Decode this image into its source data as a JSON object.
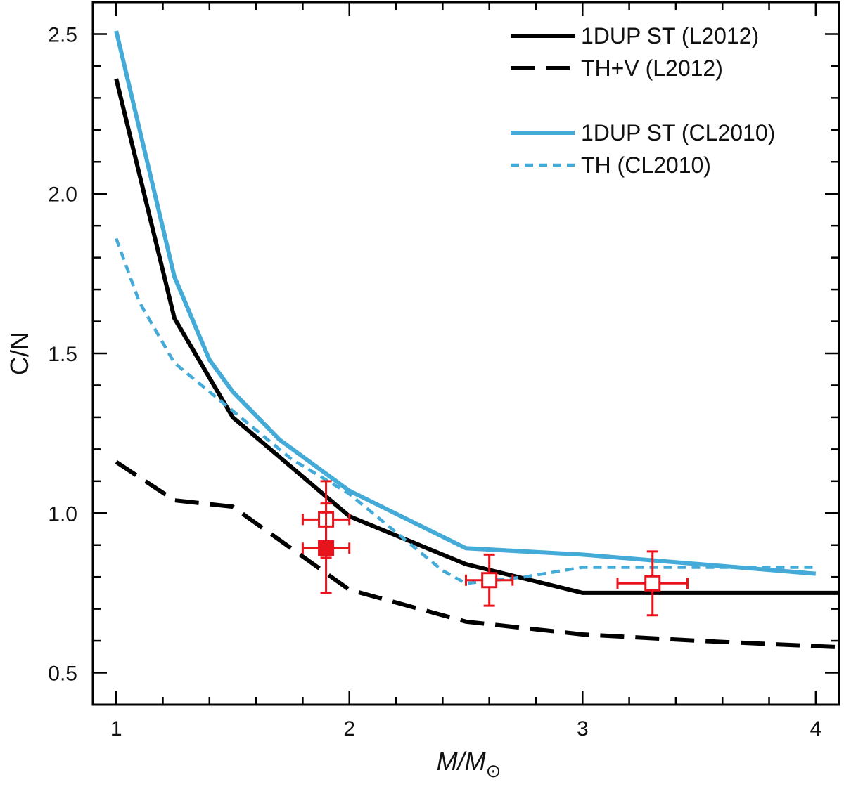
{
  "chart_data": {
    "type": "line",
    "title": "",
    "xlabel": "M/M",
    "xlabel_subscript": "⊙",
    "ylabel": "C/N",
    "xlim": [
      0.9,
      4.1
    ],
    "ylim": [
      0.4,
      2.6
    ],
    "x_ticks": [
      1,
      2,
      3,
      4
    ],
    "x_tick_labels": [
      "1",
      "2",
      "3",
      "4"
    ],
    "x_minor_ticks": [
      1.2,
      1.4,
      1.6,
      1.8,
      2.2,
      2.4,
      2.6,
      2.8,
      3.2,
      3.4,
      3.6,
      3.8
    ],
    "y_ticks": [
      0.5,
      1.0,
      1.5,
      2.0,
      2.5
    ],
    "y_tick_labels": [
      "0.5",
      "1.0",
      "1.5",
      "2.0",
      "2.5"
    ],
    "y_minor_ticks": [
      0.6,
      0.7,
      0.8,
      0.9,
      1.1,
      1.2,
      1.3,
      1.4,
      1.6,
      1.7,
      1.8,
      1.9,
      2.1,
      2.2,
      2.3,
      2.4
    ],
    "grid": false,
    "legend_position": "top-right",
    "series": [
      {
        "name": "1DUP ST (L2012)",
        "color": "#000000",
        "style": "solid",
        "x": [
          1.0,
          1.25,
          1.5,
          2.0,
          2.5,
          3.0,
          4.1
        ],
        "y": [
          2.36,
          1.61,
          1.3,
          0.99,
          0.84,
          0.75,
          0.75
        ]
      },
      {
        "name": "TH+V (L2012)",
        "color": "#000000",
        "style": "dashed",
        "x": [
          1.0,
          1.25,
          1.5,
          1.75,
          2.0,
          2.5,
          3.0,
          3.5,
          4.1
        ],
        "y": [
          1.16,
          1.04,
          1.02,
          0.89,
          0.76,
          0.66,
          0.62,
          0.6,
          0.58
        ]
      },
      {
        "name": "1DUP ST (CL2010)",
        "color": "#44aad8",
        "style": "solid",
        "x": [
          1.0,
          1.25,
          1.4,
          1.5,
          1.7,
          2.0,
          2.5,
          3.0,
          3.5,
          4.0
        ],
        "y": [
          2.51,
          1.74,
          1.48,
          1.38,
          1.23,
          1.07,
          0.89,
          0.87,
          0.84,
          0.81
        ]
      },
      {
        "name": "TH (CL2010)",
        "color": "#44aad8",
        "style": "dotted",
        "x": [
          1.0,
          1.1,
          1.25,
          1.5,
          1.75,
          2.0,
          2.4,
          2.5,
          2.75,
          3.0,
          3.5,
          4.0
        ],
        "y": [
          1.86,
          1.66,
          1.47,
          1.32,
          1.17,
          1.06,
          0.82,
          0.78,
          0.8,
          0.83,
          0.83,
          0.83
        ]
      }
    ],
    "points": [
      {
        "x": 1.9,
        "y": 0.98,
        "xerr": 0.1,
        "yerr": 0.12,
        "filled": false
      },
      {
        "x": 1.9,
        "y": 0.89,
        "xerr": 0.1,
        "yerr": 0.14,
        "filled": true
      },
      {
        "x": 2.6,
        "y": 0.79,
        "xerr": 0.1,
        "yerr": 0.08,
        "filled": false
      },
      {
        "x": 3.3,
        "y": 0.78,
        "xerr": 0.15,
        "yerr": 0.1,
        "filled": false
      }
    ],
    "point_color": "#e8141c",
    "legend": [
      {
        "label": "1DUP ST (L2012)",
        "series": 0
      },
      {
        "label": "TH+V (L2012)",
        "series": 1
      },
      {
        "label": "1DUP ST (CL2010)",
        "series": 2
      },
      {
        "label": "TH (CL2010)",
        "series": 3
      }
    ]
  }
}
